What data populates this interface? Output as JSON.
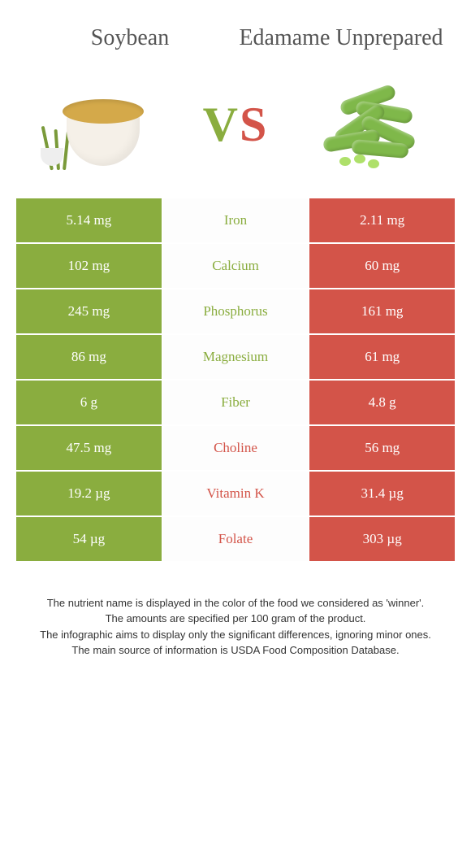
{
  "header": {
    "left_title": "Soybean",
    "right_title": "Edamame Unprepared"
  },
  "vs": {
    "v": "V",
    "s": "S"
  },
  "colors": {
    "left": "#8aad3f",
    "right": "#d35449",
    "mid_bg": "#fdfdfd"
  },
  "rows": [
    {
      "left": "5.14 mg",
      "label": "Iron",
      "right": "2.11 mg",
      "winner": "left"
    },
    {
      "left": "102 mg",
      "label": "Calcium",
      "right": "60 mg",
      "winner": "left"
    },
    {
      "left": "245 mg",
      "label": "Phosphorus",
      "right": "161 mg",
      "winner": "left"
    },
    {
      "left": "86 mg",
      "label": "Magnesium",
      "right": "61 mg",
      "winner": "left"
    },
    {
      "left": "6 g",
      "label": "Fiber",
      "right": "4.8 g",
      "winner": "left"
    },
    {
      "left": "47.5 mg",
      "label": "Choline",
      "right": "56 mg",
      "winner": "right"
    },
    {
      "left": "19.2 µg",
      "label": "Vitamin K",
      "right": "31.4 µg",
      "winner": "right"
    },
    {
      "left": "54 µg",
      "label": "Folate",
      "right": "303 µg",
      "winner": "right"
    }
  ],
  "footer": {
    "line1": "The nutrient name is displayed in the color of the food we considered as 'winner'.",
    "line2": "The amounts are specified per 100 gram of the product.",
    "line3": "The infographic aims to display only the significant differences, ignoring minor ones.",
    "line4": "The main source of information is USDA Food Composition Database."
  }
}
